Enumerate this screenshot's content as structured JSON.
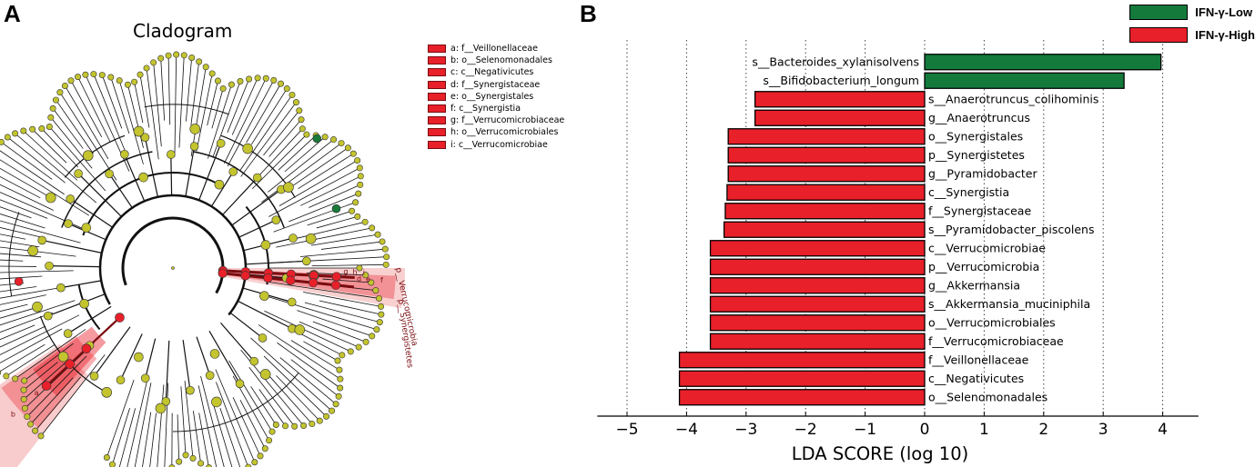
{
  "panel_a": {
    "letter": "A",
    "title": "Cladogram",
    "legend": [
      "a: f__Veillonellaceae",
      "b: o__Selenomonadales",
      "c: c__Negativicutes",
      "d: f__Synergistaceae",
      "e: o__Synergistales",
      "f: c__Synergistia",
      "g: f__Verrucomicrobiaceae",
      "h: o__Verrucomicrobiales",
      "i: c__Verrucomicrobiae"
    ],
    "sector_labels": [
      "c",
      "b",
      "a",
      "d",
      "e",
      "f",
      "g",
      "h",
      "i"
    ],
    "phylum_labels": [
      "p__Verrucomicrobia",
      "p__Synergistetes"
    ],
    "colors": {
      "node": "#c3c42e",
      "high": "#e8202a",
      "low": "#1a7a3a",
      "shade": "#f2a2a2"
    }
  },
  "panel_b": {
    "letter": "B",
    "legend": [
      {
        "label": "IFN-γ-Low",
        "color": "#137a3c"
      },
      {
        "label": "IFN-γ-High",
        "color": "#e8202a"
      }
    ]
  },
  "chart_data": {
    "type": "bar",
    "orientation": "horizontal",
    "xlabel": "LDA SCORE (log 10)",
    "xlim": [
      -5.5,
      4.6
    ],
    "xticks": [
      -5,
      -4,
      -3,
      -2,
      -1,
      0,
      1,
      2,
      3,
      4
    ],
    "xtick_labels": [
      "−5",
      "−4",
      "−3",
      "−2",
      "−1",
      "0",
      "1",
      "2",
      "3",
      "4"
    ],
    "grid": "vertical dotted",
    "bars": [
      {
        "label": "s__Bacteroides_xylanisolvens",
        "value": 3.97,
        "group": "IFN-γ-Low"
      },
      {
        "label": "s__Bifidobacterium_longum",
        "value": 3.35,
        "group": "IFN-γ-Low"
      },
      {
        "label": "s__Anaerotruncus_colihominis",
        "value": -2.85,
        "group": "IFN-γ-High"
      },
      {
        "label": "g__Anaerotruncus",
        "value": -2.85,
        "group": "IFN-γ-High"
      },
      {
        "label": "o__Synergistales",
        "value": -3.3,
        "group": "IFN-γ-High"
      },
      {
        "label": "p__Synergistetes",
        "value": -3.3,
        "group": "IFN-γ-High"
      },
      {
        "label": "g__Pyramidobacter",
        "value": -3.3,
        "group": "IFN-γ-High"
      },
      {
        "label": "c__Synergistia",
        "value": -3.32,
        "group": "IFN-γ-High"
      },
      {
        "label": "f__Synergistaceae",
        "value": -3.35,
        "group": "IFN-γ-High"
      },
      {
        "label": "s__Pyramidobacter_piscolens",
        "value": -3.37,
        "group": "IFN-γ-High"
      },
      {
        "label": "c__Verrucomicrobiae",
        "value": -3.6,
        "group": "IFN-γ-High"
      },
      {
        "label": "p__Verrucomicrobia",
        "value": -3.6,
        "group": "IFN-γ-High"
      },
      {
        "label": "g__Akkermansia",
        "value": -3.6,
        "group": "IFN-γ-High"
      },
      {
        "label": "s__Akkermansia_muciniphila",
        "value": -3.6,
        "group": "IFN-γ-High"
      },
      {
        "label": "o__Verrucomicrobiales",
        "value": -3.6,
        "group": "IFN-γ-High"
      },
      {
        "label": "f__Verrucomicrobiaceae",
        "value": -3.6,
        "group": "IFN-γ-High"
      },
      {
        "label": "f__Veillonellaceae",
        "value": -4.12,
        "group": "IFN-γ-High"
      },
      {
        "label": "c__Negativicutes",
        "value": -4.12,
        "group": "IFN-γ-High"
      },
      {
        "label": "o__Selenomonadales",
        "value": -4.12,
        "group": "IFN-γ-High"
      }
    ],
    "colors": {
      "IFN-γ-Low": "#137a3c",
      "IFN-γ-High": "#e8202a"
    }
  }
}
